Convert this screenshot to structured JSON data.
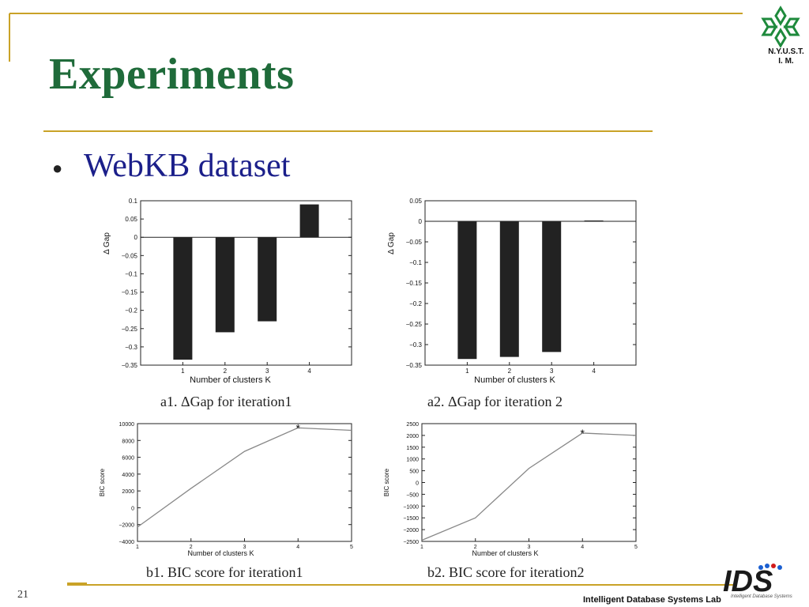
{
  "slide": {
    "title": "Experiments",
    "bullet": "WebKB dataset",
    "page_number": "21",
    "footer": "Intelligent Database Systems Lab",
    "logo_text_line1": "N.Y.U.S.T.",
    "logo_text_line2": "I. M.",
    "ids_logo_text": "IDS",
    "ids_logo_subtext": "Intelligent Database Systems",
    "colors": {
      "title": "#1f6b3a",
      "bullet": "#1b1f8a",
      "rule": "#c9a227",
      "logo": "#1e8a3c"
    }
  },
  "captions": {
    "a1": "a1. ΔGap for iteration1",
    "a2": "a2. ΔGap for iteration 2",
    "b1": "b1. BIC score for iteration1",
    "b2": "b2. BIC score for iteration2"
  },
  "chart_data": [
    {
      "id": "a1",
      "type": "bar",
      "categories": [
        "1",
        "2",
        "3",
        "4"
      ],
      "values": [
        -0.335,
        -0.26,
        -0.23,
        0.09
      ],
      "ylim": [
        -0.35,
        0.1
      ],
      "yticks": [
        0.1,
        0.05,
        0,
        -0.05,
        -0.1,
        -0.15,
        -0.2,
        -0.25,
        -0.3,
        -0.35
      ],
      "yticklabels": [
        "0.1",
        "0.05",
        "0",
        "−0.05",
        "−0.1",
        "−0.15",
        "−0.2",
        "−0.25",
        "−0.3",
        "−0.35"
      ],
      "xlabel": "Number of clusters K",
      "ylabel": "Δ Gap",
      "grid": false
    },
    {
      "id": "a2",
      "type": "bar",
      "categories": [
        "1",
        "2",
        "3",
        "4"
      ],
      "values": [
        -0.335,
        -0.33,
        -0.318,
        0.002
      ],
      "ylim": [
        -0.35,
        0.05
      ],
      "yticks": [
        0.05,
        0,
        -0.05,
        -0.1,
        -0.15,
        -0.2,
        -0.25,
        -0.3,
        -0.35
      ],
      "yticklabels": [
        "0.05",
        "0",
        "−0.05",
        "−0.1",
        "−0.15",
        "−0.2",
        "−0.25",
        "−0.3",
        "−0.35"
      ],
      "xlabel": "Number of clusters K",
      "ylabel": "Δ Gap",
      "grid": false
    },
    {
      "id": "b1",
      "type": "line",
      "x": [
        1,
        2,
        3,
        4,
        5
      ],
      "values": [
        -2300,
        2300,
        6700,
        9500,
        9200
      ],
      "marker_index": 3,
      "xlim": [
        1,
        5
      ],
      "ylim": [
        -4000,
        10000
      ],
      "xticks": [
        1,
        2,
        3,
        4,
        5
      ],
      "yticks": [
        10000,
        8000,
        6000,
        4000,
        2000,
        0,
        -2000,
        -4000
      ],
      "yticklabels": [
        "10000",
        "8000",
        "6000",
        "4000",
        "2000",
        "0",
        "−2000",
        "−4000"
      ],
      "xlabel": "Number of clusters K",
      "ylabel": "BIC score",
      "grid": false
    },
    {
      "id": "b2",
      "type": "line",
      "x": [
        1,
        2,
        3,
        4,
        5
      ],
      "values": [
        -2450,
        -1500,
        600,
        2100,
        2000
      ],
      "marker_index": 3,
      "xlim": [
        1,
        5
      ],
      "ylim": [
        -2500,
        2500
      ],
      "xticks": [
        1,
        2,
        3,
        4,
        5
      ],
      "yticks": [
        2500,
        2000,
        1500,
        1000,
        500,
        0,
        -500,
        -1000,
        -1500,
        -2000,
        -2500
      ],
      "yticklabels": [
        "2500",
        "2000",
        "1500",
        "1000",
        "500",
        "0",
        "−500",
        "−1000",
        "−1500",
        "−2000",
        "−2500"
      ],
      "xlabel": "Number of clusters K",
      "ylabel": "BIC score",
      "grid": false
    }
  ]
}
